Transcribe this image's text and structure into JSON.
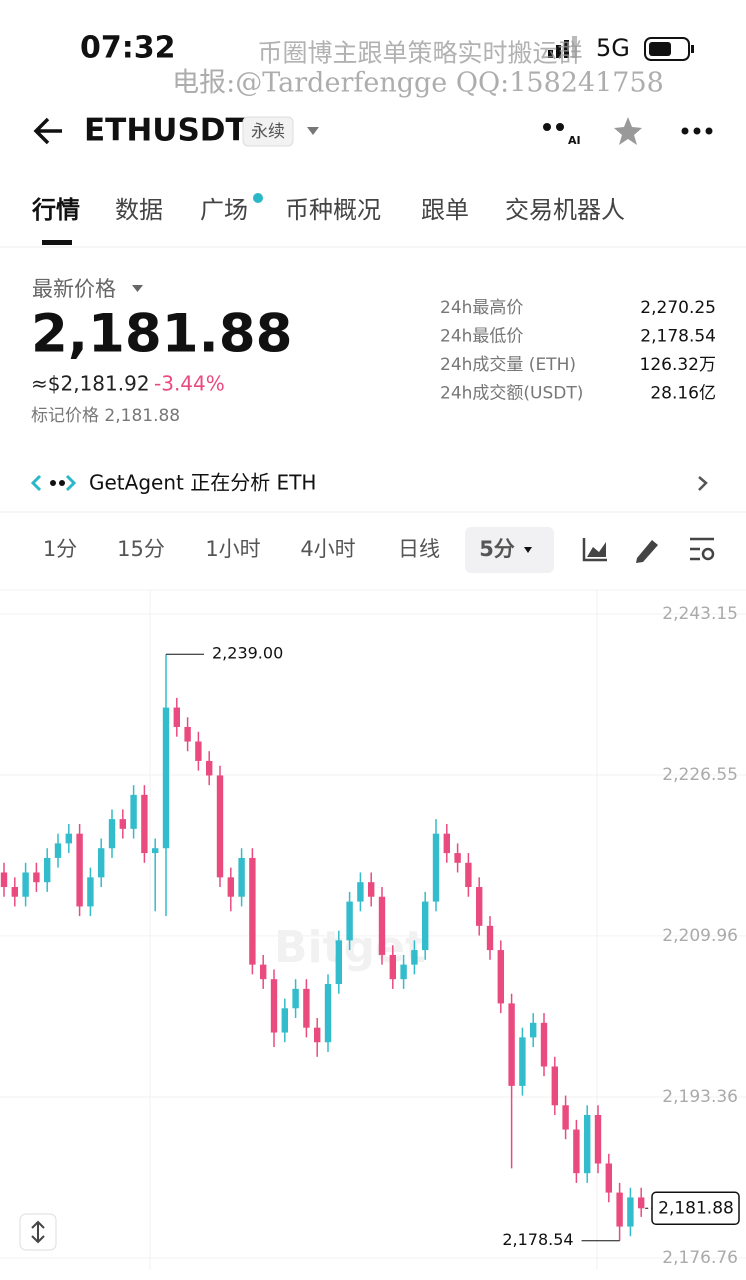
{
  "status_bar": {
    "time": "07:32",
    "network": "5G"
  },
  "overlay": {
    "line1": "币圈博主跟单策略实时搬运群",
    "line2": "电报:@Tarderfengge QQ:158241758"
  },
  "header": {
    "symbol": "ETHUSDT",
    "badge": "永续"
  },
  "tabs": [
    "行情",
    "数据",
    "广场",
    "币种概况",
    "跟单",
    "交易机器人"
  ],
  "price": {
    "label": "最新价格",
    "last": "2,181.88",
    "usd": "≈$2,181.92",
    "change": "-3.44%",
    "mark_price": "标记价格 2,181.88"
  },
  "stats": [
    {
      "label": "24h最高价",
      "value": "2,270.25"
    },
    {
      "label": "24h最低价",
      "value": "2,178.54"
    },
    {
      "label": "24h成交量 (ETH)",
      "value": "126.32万"
    },
    {
      "label": "24h成交额(USDT)",
      "value": "28.16亿"
    }
  ],
  "agent": {
    "text": "GetAgent 正在分析 ETH"
  },
  "intervals": [
    "1分",
    "15分",
    "1小时",
    "4小时",
    "日线",
    "5分"
  ],
  "chart_data": {
    "type": "candlestick",
    "watermark": "Bitget",
    "up_color": "#33bccb",
    "down_color": "#e94b7f",
    "open": [
      2216.5,
      2215.0,
      2214.0,
      2216.5,
      2215.5,
      2218.0,
      2219.5,
      2220.5,
      2213.0,
      2216.0,
      2219.0,
      2222.0,
      2221.0,
      2224.5,
      2218.5,
      2219.0,
      2233.5,
      2231.5,
      2230.0,
      2228.0,
      2226.5,
      2216.0,
      2214.0,
      2218.0,
      2207.0,
      2205.5,
      2200.0,
      2202.5,
      2204.5,
      2200.5,
      2199.0,
      2205.0,
      2209.5,
      2213.5,
      2215.5,
      2214.0,
      2208.0,
      2205.5,
      2207.0,
      2208.5,
      2213.5,
      2220.5,
      2218.5,
      2217.5,
      2215.0,
      2211.0,
      2208.5,
      2203.0,
      2194.5,
      2199.5,
      2201.0,
      2196.5,
      2192.5,
      2190.0,
      2185.5,
      2191.5,
      2186.5,
      2183.5,
      2180.0,
      2183.0
    ],
    "high": [
      2217.5,
      2216,
      2217.5,
      2217.5,
      2219,
      2220.5,
      2221.5,
      2221.5,
      2217,
      2220,
      2223,
      2223,
      2225.5,
      2225.5,
      2220,
      2239.0,
      2234.5,
      2232.5,
      2231,
      2229,
      2227.5,
      2217,
      2219,
      2219,
      2208,
      2206.5,
      2203.5,
      2205.5,
      2205.5,
      2201.5,
      2206,
      2210.5,
      2214.5,
      2216.5,
      2216.5,
      2215,
      2209,
      2208,
      2209.5,
      2214.5,
      2222,
      2221.5,
      2219.5,
      2218.5,
      2216,
      2212,
      2209.5,
      2204,
      2200.5,
      2202,
      2202,
      2197.5,
      2193.5,
      2191,
      2192.5,
      2192.5,
      2187.5,
      2184.5,
      2184,
      2184
    ],
    "low": [
      2214,
      2213,
      2213,
      2214.5,
      2214.5,
      2217,
      2218.5,
      2212,
      2212,
      2215,
      2218,
      2220,
      2220,
      2217.5,
      2212.5,
      2212.0,
      2230.5,
      2229,
      2227,
      2225.5,
      2215,
      2212.5,
      2213,
      2206,
      2204.5,
      2198.5,
      2199,
      2201.5,
      2199.5,
      2197.5,
      2198,
      2204,
      2208.5,
      2212.5,
      2213,
      2207,
      2204.5,
      2204.5,
      2206,
      2207.5,
      2212.5,
      2217.5,
      2216.5,
      2214,
      2210,
      2207.5,
      2202,
      2186.0,
      2193.5,
      2198.5,
      2195.5,
      2191.5,
      2189,
      2184.5,
      2184.5,
      2185.5,
      2182.5,
      2178.54,
      2179,
      2181
    ],
    "close": [
      2215.0,
      2214.0,
      2216.5,
      2215.5,
      2218.0,
      2219.5,
      2220.5,
      2213.0,
      2216.0,
      2219.0,
      2222.0,
      2221.0,
      2224.5,
      2218.5,
      2219.0,
      2233.5,
      2231.5,
      2230.0,
      2228.0,
      2226.5,
      2216.0,
      2214.0,
      2218.0,
      2207.0,
      2205.5,
      2200.0,
      2202.5,
      2204.5,
      2200.5,
      2199.0,
      2205.0,
      2209.5,
      2213.5,
      2215.5,
      2214.0,
      2208.0,
      2205.5,
      2207.0,
      2208.5,
      2213.5,
      2220.5,
      2218.5,
      2217.5,
      2215.0,
      2211.0,
      2208.5,
      2203.0,
      2194.5,
      2199.5,
      2201.0,
      2196.5,
      2192.5,
      2190.0,
      2185.5,
      2191.5,
      2186.5,
      2183.5,
      2180.0,
      2183.0,
      2181.88
    ],
    "ylim": [
      2175.52,
      2245.62
    ],
    "yticks": [
      {
        "value": 2243.15,
        "label": "2,243.15"
      },
      {
        "value": 2226.55,
        "label": "2,226.55"
      },
      {
        "value": 2209.96,
        "label": "2,209.96"
      },
      {
        "value": 2193.36,
        "label": "2,193.36"
      },
      {
        "value": 2176.76,
        "label": "2,176.76"
      }
    ],
    "grid": true,
    "high_label": "2,239.00",
    "low_label": "2,178.54",
    "last_label": "2,181.88"
  }
}
